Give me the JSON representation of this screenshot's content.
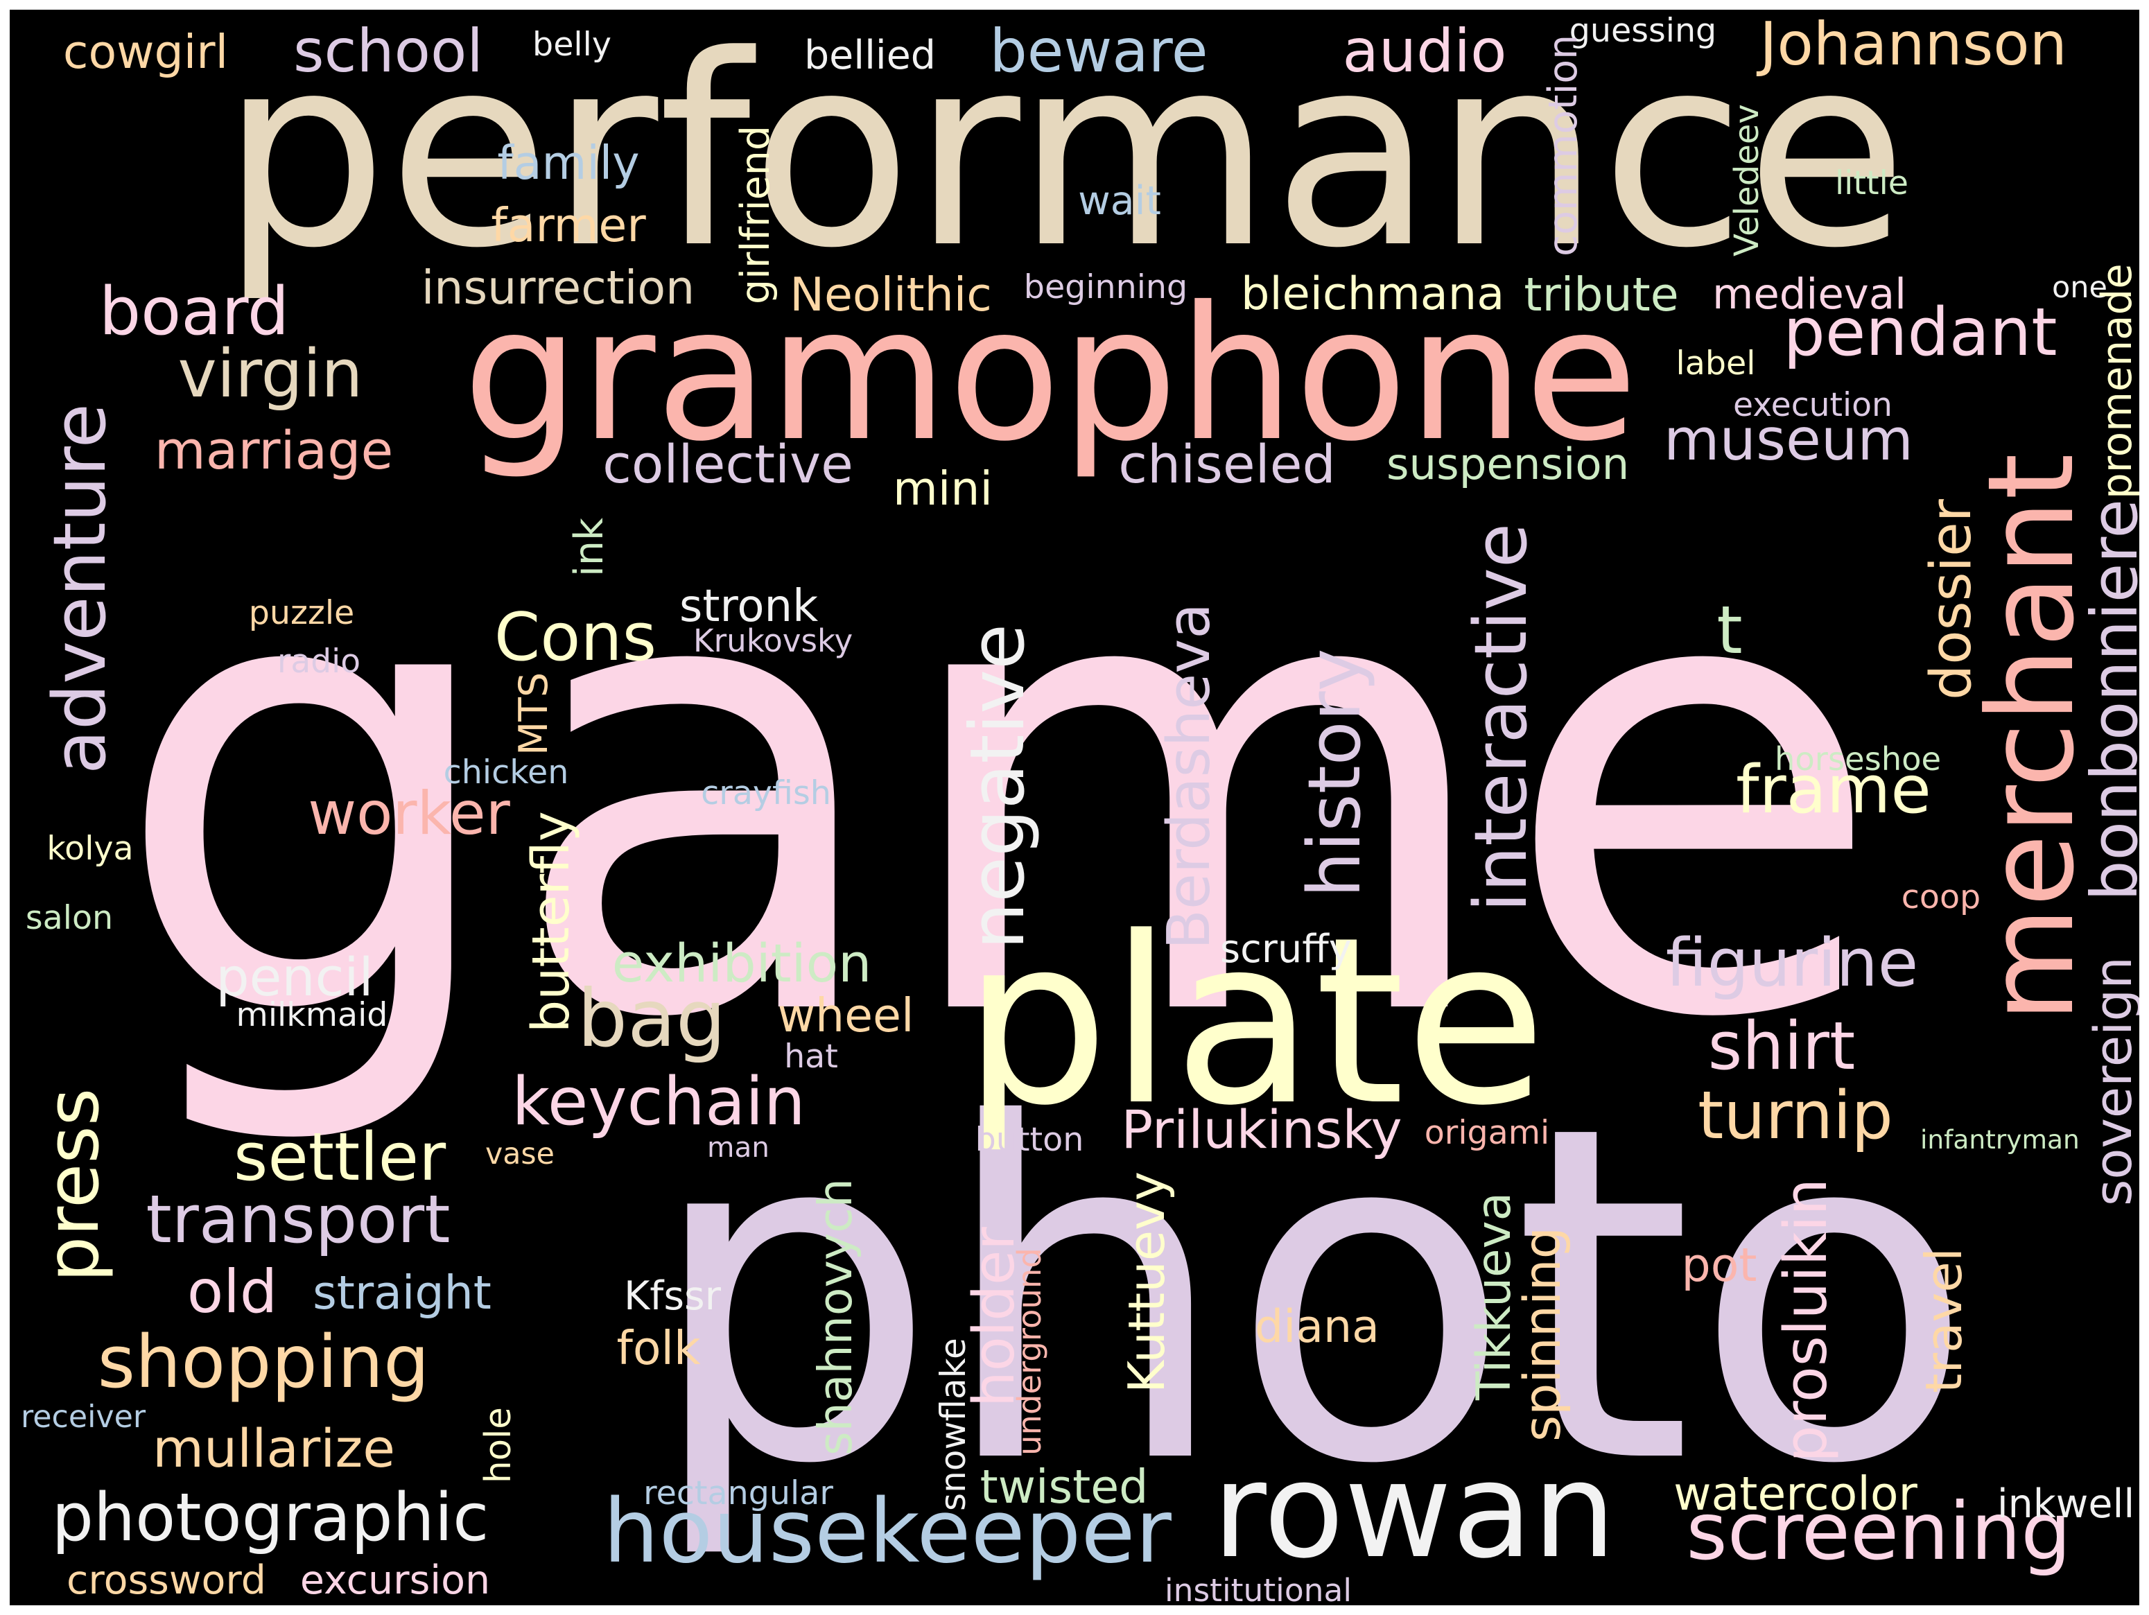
{
  "background": "#000000",
  "palette": {
    "beige": "#e6d8be",
    "pink": "#fcd6e6",
    "salmon": "#fbb5ad",
    "lavender": "#ddcbe4",
    "yellow": "#ffffcc",
    "peach": "#fed8a6",
    "blue": "#b4cde3",
    "green": "#cdebc4",
    "white": "#f2f2f2"
  },
  "words": [
    {
      "id": "game",
      "text": "game",
      "color": "#fcd6e6"
    },
    {
      "id": "photo",
      "text": "photo",
      "color": "#ddcbe4"
    },
    {
      "id": "performance",
      "text": "performance",
      "color": "#e6d8be"
    },
    {
      "id": "gramophone",
      "text": "gramophone",
      "color": "#fbb5ad"
    },
    {
      "id": "plate",
      "text": "plate",
      "color": "#ffffcc"
    },
    {
      "id": "merchant",
      "text": "merchant",
      "color": "#fbb5ad"
    },
    {
      "id": "rowan",
      "text": "rowan",
      "color": "#f2f2f2"
    },
    {
      "id": "housekeeper",
      "text": "housekeeper",
      "color": "#b4cde3"
    },
    {
      "id": "screening",
      "text": "screening",
      "color": "#fcd6e6"
    },
    {
      "id": "photographic",
      "text": "photographic",
      "color": "#f2f2f2"
    },
    {
      "id": "shopping",
      "text": "shopping",
      "color": "#fed8a6"
    },
    {
      "id": "press",
      "text": "press",
      "color": "#ffffcc"
    },
    {
      "id": "adventure",
      "text": "adventure",
      "color": "#ddcbe4"
    },
    {
      "id": "transport",
      "text": "transport",
      "color": "#ddcbe4"
    },
    {
      "id": "settler",
      "text": "settler",
      "color": "#ffffcc"
    },
    {
      "id": "keychain",
      "text": "keychain",
      "color": "#fcd6e6"
    },
    {
      "id": "bag",
      "text": "bag",
      "color": "#e6d8be"
    },
    {
      "id": "worker",
      "text": "worker",
      "color": "#fbb5ad"
    },
    {
      "id": "mullarize",
      "text": "mullarize",
      "color": "#fed8a6"
    },
    {
      "id": "old",
      "text": "old",
      "color": "#fcd6e6"
    },
    {
      "id": "straight",
      "text": "straight",
      "color": "#b4cde3"
    },
    {
      "id": "crossword",
      "text": "crossword",
      "color": "#fed8a6"
    },
    {
      "id": "excursion",
      "text": "excursion",
      "color": "#fcd6e6"
    },
    {
      "id": "board",
      "text": "board",
      "color": "#fcd6e6"
    },
    {
      "id": "virgin",
      "text": "virgin",
      "color": "#e6d8be"
    },
    {
      "id": "marriage",
      "text": "marriage",
      "color": "#fbb5ad"
    },
    {
      "id": "school",
      "text": "school",
      "color": "#ddcbe4"
    },
    {
      "id": "cowgirl",
      "text": "cowgirl",
      "color": "#fed8a6"
    },
    {
      "id": "belly",
      "text": "belly",
      "color": "#f2f2f2"
    },
    {
      "id": "bellied",
      "text": "bellied",
      "color": "#f2f2f2"
    },
    {
      "id": "beware",
      "text": "beware",
      "color": "#b4cde3"
    },
    {
      "id": "audio",
      "text": "audio",
      "color": "#fcd6e6"
    },
    {
      "id": "guessing",
      "text": "guessing",
      "color": "#f2f2f2"
    },
    {
      "id": "johannson",
      "text": "Johannson",
      "color": "#fed8a6"
    },
    {
      "id": "family",
      "text": "family",
      "color": "#b4cde3"
    },
    {
      "id": "farmer",
      "text": "farmer",
      "color": "#fed8a6"
    },
    {
      "id": "wait",
      "text": "wait",
      "color": "#b4cde3"
    },
    {
      "id": "little",
      "text": "little",
      "color": "#cdebc4"
    },
    {
      "id": "commotion",
      "text": "commotion",
      "color": "#ddcbe4"
    },
    {
      "id": "girlfriend",
      "text": "girlfriend",
      "color": "#ffffcc"
    },
    {
      "id": "veledeev",
      "text": "Veledeev",
      "color": "#cdebc4"
    },
    {
      "id": "insurrection",
      "text": "insurrection",
      "color": "#e6d8be"
    },
    {
      "id": "neolithic",
      "text": "Neolithic",
      "color": "#fed8a6"
    },
    {
      "id": "beginning",
      "text": "beginning",
      "color": "#ddcbe4"
    },
    {
      "id": "bleichmana",
      "text": "bleichmana",
      "color": "#ffffcc"
    },
    {
      "id": "tribute",
      "text": "tribute",
      "color": "#cdebc4"
    },
    {
      "id": "medieval",
      "text": "medieval",
      "color": "#fcd6e6"
    },
    {
      "id": "one",
      "text": "one",
      "color": "#f2f2f2"
    },
    {
      "id": "pendant",
      "text": "pendant",
      "color": "#fcd6e6"
    },
    {
      "id": "label",
      "text": "label",
      "color": "#ffffcc"
    },
    {
      "id": "execution",
      "text": "execution",
      "color": "#ddcbe4"
    },
    {
      "id": "museum",
      "text": "museum",
      "color": "#ddcbe4"
    },
    {
      "id": "promenade",
      "text": "promenade",
      "color": "#ffffcc"
    },
    {
      "id": "collective",
      "text": "collective",
      "color": "#ddcbe4"
    },
    {
      "id": "chiseled",
      "text": "chiseled",
      "color": "#ddcbe4"
    },
    {
      "id": "suspension",
      "text": "suspension",
      "color": "#cdebc4"
    },
    {
      "id": "mini",
      "text": "mini",
      "color": "#ffffcc"
    },
    {
      "id": "ink",
      "text": "ink",
      "color": "#cdebc4"
    },
    {
      "id": "stronk",
      "text": "stronk",
      "color": "#f2f2f2"
    },
    {
      "id": "krukovsky",
      "text": "Krukovsky",
      "color": "#ddcbe4"
    },
    {
      "id": "cons",
      "text": "Cons",
      "color": "#ffffcc"
    },
    {
      "id": "t",
      "text": "t",
      "color": "#cdebc4"
    },
    {
      "id": "dossier",
      "text": "dossier",
      "color": "#fed8a6"
    },
    {
      "id": "puzzle",
      "text": "puzzle",
      "color": "#fed8a6"
    },
    {
      "id": "radio",
      "text": "radio",
      "color": "#ddcbe4"
    },
    {
      "id": "mts",
      "text": "MTS",
      "color": "#fed8a6"
    },
    {
      "id": "chicken",
      "text": "chicken",
      "color": "#b4cde3"
    },
    {
      "id": "crayfish",
      "text": "crayfish",
      "color": "#b4cde3"
    },
    {
      "id": "kolya",
      "text": "kolya",
      "color": "#ffffcc"
    },
    {
      "id": "salon",
      "text": "salon",
      "color": "#cdebc4"
    },
    {
      "id": "butterfly",
      "text": "butterfly",
      "color": "#ffffcc"
    },
    {
      "id": "negative",
      "text": "negative",
      "color": "#f2f2f2"
    },
    {
      "id": "berdasheva",
      "text": "Berdasheva",
      "color": "#ddcbe4"
    },
    {
      "id": "history",
      "text": "history",
      "color": "#ddcbe4"
    },
    {
      "id": "interactive",
      "text": "interactive",
      "color": "#ddcbe4"
    },
    {
      "id": "horseshoe",
      "text": "horseshoe",
      "color": "#cdebc4"
    },
    {
      "id": "frame",
      "text": "frame",
      "color": "#ffffcc"
    },
    {
      "id": "bonbonniere",
      "text": "bonbonniere",
      "color": "#ddcbe4"
    },
    {
      "id": "coop",
      "text": "coop",
      "color": "#fbb5ad"
    },
    {
      "id": "exhibition",
      "text": "exhibition",
      "color": "#cdebc4"
    },
    {
      "id": "scruffy",
      "text": "scruffy",
      "color": "#f2f2f2"
    },
    {
      "id": "figurine",
      "text": "figurine",
      "color": "#ddcbe4"
    },
    {
      "id": "pencil",
      "text": "pencil",
      "color": "#f2f2f2"
    },
    {
      "id": "milkmaid",
      "text": "milkmaid",
      "color": "#f2f2f2"
    },
    {
      "id": "wheel",
      "text": "wheel",
      "color": "#fed8a6"
    },
    {
      "id": "hat",
      "text": "hat",
      "color": "#ddcbe4"
    },
    {
      "id": "shirt",
      "text": "shirt",
      "color": "#fcd6e6"
    },
    {
      "id": "sovereign",
      "text": "sovereign",
      "color": "#ddcbe4"
    },
    {
      "id": "turnip",
      "text": "turnip",
      "color": "#fed8a6"
    },
    {
      "id": "infantryman",
      "text": "infantryman",
      "color": "#cdebc4"
    },
    {
      "id": "button",
      "text": "button",
      "color": "#ddcbe4"
    },
    {
      "id": "prilukinsky",
      "text": "Prilukinsky",
      "color": "#fcd6e6"
    },
    {
      "id": "origami",
      "text": "origami",
      "color": "#fbb5ad"
    },
    {
      "id": "vase",
      "text": "vase",
      "color": "#fed8a6"
    },
    {
      "id": "man",
      "text": "man",
      "color": "#ddcbe4"
    },
    {
      "id": "kfssr",
      "text": "Kfssr",
      "color": "#f2f2f2"
    },
    {
      "id": "folk",
      "text": "folk",
      "color": "#fed8a6"
    },
    {
      "id": "shahnovych",
      "text": "shahnovych",
      "color": "#cdebc4"
    },
    {
      "id": "holder",
      "text": "holder",
      "color": "#fcd6e6"
    },
    {
      "id": "underground",
      "text": "underground",
      "color": "#fbb5ad"
    },
    {
      "id": "kuttuevy",
      "text": "Kuttuevy",
      "color": "#ffffcc"
    },
    {
      "id": "diana",
      "text": "diana",
      "color": "#fed8a6"
    },
    {
      "id": "tikkueva",
      "text": "Tikkueva",
      "color": "#cdebc4"
    },
    {
      "id": "spinning",
      "text": "spinning",
      "color": "#fed8a6"
    },
    {
      "id": "pot",
      "text": "pot",
      "color": "#fbb5ad"
    },
    {
      "id": "prosluikin",
      "text": "prosluikin",
      "color": "#fcd6e6"
    },
    {
      "id": "travel",
      "text": "travel",
      "color": "#fed8a6"
    },
    {
      "id": "snowflake",
      "text": "snowflake",
      "color": "#f2f2f2"
    },
    {
      "id": "twisted",
      "text": "twisted",
      "color": "#cdebc4"
    },
    {
      "id": "rectangular",
      "text": "rectangular",
      "color": "#b4cde3"
    },
    {
      "id": "hole",
      "text": "hole",
      "color": "#ffffcc"
    },
    {
      "id": "receiver",
      "text": "receiver",
      "color": "#b4cde3"
    },
    {
      "id": "watercolor",
      "text": "watercolor",
      "color": "#ffffcc"
    },
    {
      "id": "inkwell",
      "text": "inkwell",
      "color": "#f2f2f2"
    },
    {
      "id": "institutional",
      "text": "institutional",
      "color": "#ddcbe4"
    }
  ]
}
